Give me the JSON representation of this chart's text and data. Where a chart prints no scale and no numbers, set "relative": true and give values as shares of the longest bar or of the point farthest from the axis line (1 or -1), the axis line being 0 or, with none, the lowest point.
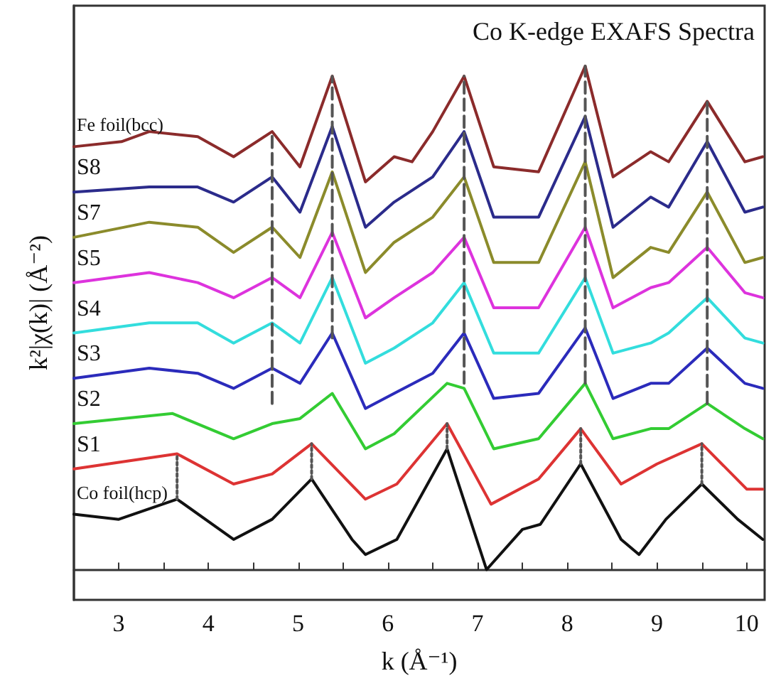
{
  "chart_data": {
    "type": "line",
    "title": "Co K-edge EXAFS Spectra",
    "xlabel": "k (Å⁻¹)",
    "ylabel": "k²|χ(k)| (Å⁻²)",
    "relative": true,
    "legend": false,
    "grid": false,
    "marker": "none",
    "line_style": "solid",
    "xlim": [
      2.5,
      10.2
    ],
    "xticks": [
      3,
      {
        "value": 3.5,
        "label": null
      },
      4,
      {
        "value": 4.5,
        "label": null
      },
      5,
      {
        "value": 5.5,
        "label": null
      },
      6,
      {
        "value": 6.5,
        "label": null
      },
      7,
      {
        "value": 7.5,
        "label": null
      },
      8,
      {
        "value": 8.5,
        "label": null
      },
      9,
      {
        "value": 9.5,
        "label": null
      },
      10
    ],
    "series": [
      {
        "name": "Fe foil(bcc)",
        "color": "#8b2b2b",
        "x": [
          2.5,
          3.03,
          3.34,
          3.88,
          4.28,
          4.71,
          5.02,
          5.38,
          5.75,
          6.07,
          6.27,
          6.5,
          6.85,
          7.18,
          7.68,
          8.2,
          8.51,
          8.93,
          9.13,
          9.56,
          9.98,
          10.18
        ],
        "values": [
          0.84,
          0.85,
          0.87,
          0.86,
          0.82,
          0.87,
          0.8,
          0.98,
          0.77,
          0.82,
          0.81,
          0.87,
          0.98,
          0.8,
          0.79,
          1.0,
          0.78,
          0.83,
          0.81,
          0.93,
          0.81,
          0.82
        ]
      },
      {
        "name": "S8",
        "color": "#2b2b8b",
        "x": [
          2.5,
          3.34,
          3.88,
          4.28,
          4.71,
          5.02,
          5.38,
          5.75,
          6.07,
          6.5,
          6.85,
          7.18,
          7.68,
          8.2,
          8.51,
          8.93,
          9.13,
          9.56,
          9.98,
          10.18
        ],
        "values": [
          0.75,
          0.76,
          0.76,
          0.73,
          0.78,
          0.71,
          0.88,
          0.68,
          0.73,
          0.78,
          0.87,
          0.7,
          0.7,
          0.9,
          0.68,
          0.74,
          0.72,
          0.85,
          0.71,
          0.72
        ]
      },
      {
        "name": "S7",
        "color": "#8b8b2b",
        "x": [
          2.5,
          3.34,
          3.88,
          4.28,
          4.71,
          5.02,
          5.38,
          5.75,
          6.07,
          6.5,
          6.85,
          7.18,
          7.68,
          8.2,
          8.51,
          8.93,
          9.13,
          9.56,
          9.98,
          10.18
        ],
        "values": [
          0.66,
          0.69,
          0.68,
          0.63,
          0.68,
          0.62,
          0.79,
          0.59,
          0.65,
          0.7,
          0.78,
          0.61,
          0.61,
          0.81,
          0.58,
          0.64,
          0.63,
          0.75,
          0.61,
          0.62
        ]
      },
      {
        "name": "S5",
        "color": "#dd33dd",
        "x": [
          2.5,
          3.34,
          3.88,
          4.28,
          4.71,
          5.02,
          5.38,
          5.75,
          6.07,
          6.5,
          6.85,
          7.18,
          7.68,
          8.2,
          8.51,
          8.93,
          9.13,
          9.56,
          9.98,
          10.18
        ],
        "values": [
          0.57,
          0.59,
          0.57,
          0.54,
          0.58,
          0.54,
          0.67,
          0.5,
          0.54,
          0.59,
          0.66,
          0.52,
          0.52,
          0.68,
          0.52,
          0.56,
          0.57,
          0.64,
          0.55,
          0.54
        ]
      },
      {
        "name": "S4",
        "color": "#33dddd",
        "x": [
          2.5,
          3.34,
          3.88,
          4.28,
          4.71,
          5.02,
          5.38,
          5.75,
          6.07,
          6.5,
          6.85,
          7.18,
          7.68,
          8.2,
          8.51,
          8.93,
          9.13,
          9.56,
          9.98,
          10.18
        ],
        "values": [
          0.47,
          0.49,
          0.49,
          0.45,
          0.49,
          0.45,
          0.58,
          0.41,
          0.44,
          0.49,
          0.57,
          0.43,
          0.43,
          0.58,
          0.43,
          0.45,
          0.47,
          0.54,
          0.46,
          0.45
        ]
      },
      {
        "name": "S3",
        "color": "#2b2bbb",
        "x": [
          2.5,
          3.34,
          3.88,
          4.28,
          4.71,
          5.02,
          5.38,
          5.75,
          6.07,
          6.5,
          6.85,
          7.18,
          7.68,
          8.2,
          8.51,
          8.93,
          9.13,
          9.56,
          9.98,
          10.18
        ],
        "values": [
          0.38,
          0.4,
          0.39,
          0.36,
          0.4,
          0.37,
          0.47,
          0.32,
          0.35,
          0.39,
          0.47,
          0.34,
          0.35,
          0.48,
          0.34,
          0.37,
          0.37,
          0.44,
          0.37,
          0.36
        ]
      },
      {
        "name": "S2",
        "color": "#33cc33",
        "x": [
          2.5,
          3.6,
          4.28,
          4.71,
          5.02,
          5.38,
          5.75,
          6.07,
          6.66,
          6.85,
          7.18,
          7.68,
          8.2,
          8.51,
          8.93,
          9.13,
          9.56,
          9.98,
          10.18
        ],
        "values": [
          0.29,
          0.31,
          0.26,
          0.29,
          0.3,
          0.35,
          0.24,
          0.27,
          0.37,
          0.36,
          0.24,
          0.26,
          0.37,
          0.26,
          0.28,
          0.28,
          0.33,
          0.28,
          0.26
        ]
      },
      {
        "name": "S1",
        "color": "#dd3333",
        "x": [
          2.5,
          3.65,
          4.28,
          4.71,
          5.15,
          5.75,
          6.1,
          6.66,
          7.15,
          7.68,
          8.15,
          8.6,
          9.0,
          9.5,
          10.0,
          10.18
        ],
        "values": [
          0.2,
          0.23,
          0.17,
          0.19,
          0.25,
          0.14,
          0.17,
          0.29,
          0.13,
          0.18,
          0.28,
          0.17,
          0.21,
          0.25,
          0.16,
          0.16
        ]
      },
      {
        "name": "Co foil(hcp)",
        "color": "#111111",
        "x": [
          2.5,
          3.0,
          3.65,
          4.28,
          4.71,
          5.15,
          5.6,
          5.75,
          6.1,
          6.66,
          7.1,
          7.5,
          7.7,
          8.15,
          8.6,
          8.8,
          9.1,
          9.5,
          9.9,
          10.18
        ],
        "values": [
          0.11,
          0.1,
          0.14,
          0.06,
          0.1,
          0.18,
          0.06,
          0.03,
          0.06,
          0.24,
          0.0,
          0.08,
          0.09,
          0.21,
          0.06,
          0.03,
          0.1,
          0.17,
          0.1,
          0.06
        ]
      },
      {
        "color": "#555555",
        "line_style": "dashed",
        "x": [
          4.71,
          4.71
        ],
        "values": [
          0.33,
          0.87
        ]
      },
      {
        "color": "#555555",
        "line_style": "dashed",
        "x": [
          5.38,
          5.38
        ],
        "values": [
          0.46,
          0.98
        ]
      },
      {
        "color": "#555555",
        "line_style": "dashed",
        "x": [
          6.85,
          6.85
        ],
        "values": [
          0.37,
          0.98
        ]
      },
      {
        "color": "#555555",
        "line_style": "dashed",
        "x": [
          8.2,
          8.2
        ],
        "values": [
          0.37,
          1.0
        ]
      },
      {
        "color": "#555555",
        "line_style": "dashed",
        "x": [
          9.56,
          9.56
        ],
        "values": [
          0.33,
          0.93
        ]
      },
      {
        "color": "#555555",
        "line_style": "dotted",
        "x": [
          3.65,
          3.65
        ],
        "values": [
          0.14,
          0.23
        ]
      },
      {
        "color": "#555555",
        "line_style": "dotted",
        "x": [
          5.15,
          5.15
        ],
        "values": [
          0.18,
          0.25
        ]
      },
      {
        "color": "#555555",
        "line_style": "dotted",
        "x": [
          6.66,
          6.66
        ],
        "values": [
          0.24,
          0.29
        ]
      },
      {
        "color": "#555555",
        "line_style": "dotted",
        "x": [
          8.15,
          8.15
        ],
        "values": [
          0.21,
          0.28
        ]
      },
      {
        "color": "#555555",
        "line_style": "dotted",
        "x": [
          9.5,
          9.5
        ],
        "values": [
          0.17,
          0.25
        ]
      }
    ]
  }
}
